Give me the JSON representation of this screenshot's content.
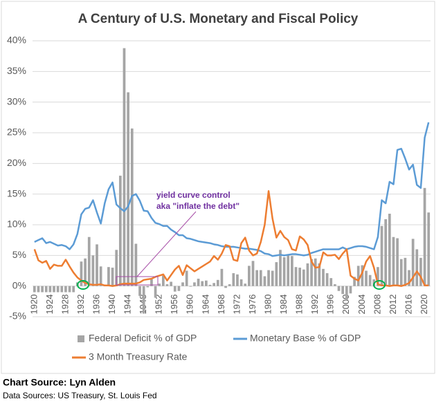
{
  "chart_data": {
    "type": "combo",
    "title": "A Century of U.S. Monetary and Fiscal Policy",
    "x": [
      1920,
      1921,
      1922,
      1923,
      1924,
      1925,
      1926,
      1927,
      1928,
      1929,
      1930,
      1931,
      1932,
      1933,
      1934,
      1935,
      1936,
      1937,
      1938,
      1939,
      1940,
      1941,
      1942,
      1943,
      1944,
      1945,
      1946,
      1947,
      1948,
      1949,
      1950,
      1951,
      1952,
      1953,
      1954,
      1955,
      1956,
      1957,
      1958,
      1959,
      1960,
      1961,
      1962,
      1963,
      1964,
      1965,
      1966,
      1967,
      1968,
      1969,
      1970,
      1971,
      1972,
      1973,
      1974,
      1975,
      1976,
      1977,
      1978,
      1979,
      1980,
      1981,
      1982,
      1983,
      1984,
      1985,
      1986,
      1987,
      1988,
      1989,
      1990,
      1991,
      1992,
      1993,
      1994,
      1995,
      1996,
      1997,
      1998,
      1999,
      2000,
      2001,
      2002,
      2003,
      2004,
      2005,
      2006,
      2007,
      2008,
      2009,
      2010,
      2011,
      2012,
      2013,
      2014,
      2015,
      2016,
      2017,
      2018,
      2019,
      2020,
      2021
    ],
    "xlim": [
      1919.5,
      2021.5
    ],
    "xticks": [
      1920,
      1924,
      1928,
      1932,
      1936,
      1940,
      1944,
      1948,
      1952,
      1956,
      1960,
      1964,
      1968,
      1972,
      1976,
      1980,
      1984,
      1988,
      1992,
      1996,
      2000,
      2004,
      2008,
      2012,
      2016,
      2020
    ],
    "ylim": [
      -5,
      40
    ],
    "yticks": [
      {
        "value": -5,
        "label": "-5%"
      },
      {
        "value": 0,
        "label": "0%"
      },
      {
        "value": 5,
        "label": "5%"
      },
      {
        "value": 10,
        "label": "10%"
      },
      {
        "value": 15,
        "label": "15%"
      },
      {
        "value": 20,
        "label": "20%"
      },
      {
        "value": 25,
        "label": "25%"
      },
      {
        "value": 30,
        "label": "30%"
      },
      {
        "value": 35,
        "label": "35%"
      },
      {
        "value": 40,
        "label": "40%"
      }
    ],
    "grid": true,
    "series": [
      {
        "name": "Federal Deficit % of GDP",
        "type": "bar",
        "color": "#a5a5a5",
        "values": [
          -1,
          -1,
          -1,
          -1,
          -1,
          -1,
          -1,
          -1,
          -1,
          -1,
          -1,
          0.6,
          4.0,
          4.5,
          8.0,
          5.0,
          6.8,
          3.2,
          0.1,
          3.1,
          3.0,
          5.9,
          18.0,
          38.8,
          31.6,
          25.7,
          6.9,
          -1.6,
          -4.5,
          -0.2,
          1.1,
          -1.9,
          0.4,
          1.7,
          0.3,
          0.7,
          -0.9,
          -0.8,
          0.6,
          2.5,
          -0.1,
          0.6,
          1.2,
          0.8,
          0.9,
          0.2,
          0.5,
          1.0,
          2.8,
          -0.3,
          0.3,
          2.1,
          1.9,
          1.1,
          0.4,
          3.3,
          4.1,
          2.6,
          2.6,
          1.6,
          2.6,
          2.5,
          3.9,
          5.9,
          4.7,
          5.0,
          4.9,
          3.1,
          3.0,
          2.7,
          3.7,
          4.4,
          4.5,
          3.7,
          2.8,
          2.1,
          1.3,
          0.3,
          -0.8,
          -1.3,
          -2.3,
          -1.2,
          1.5,
          3.3,
          3.4,
          2.5,
          1.8,
          1.1,
          3.1,
          9.8,
          10.9,
          11.8,
          8.0,
          7.8,
          4.4,
          4.6,
          2.6,
          7.7,
          6.0,
          4.6,
          16.0,
          12.0
        ]
      },
      {
        "name": "Monetary Base % of GDP",
        "type": "line",
        "color": "#5b9bd5",
        "values": [
          7.2,
          7.5,
          7.8,
          7.0,
          7.2,
          6.9,
          6.6,
          6.7,
          6.5,
          6.0,
          6.8,
          8.5,
          11.7,
          12.6,
          12.8,
          14.0,
          12.0,
          10.2,
          13.5,
          15.8,
          16.9,
          13.3,
          12.7,
          12.2,
          13.0,
          14.7,
          15.0,
          13.9,
          12.3,
          12.2,
          11.1,
          10.3,
          10.1,
          9.8,
          9.8,
          9.2,
          8.8,
          8.3,
          8.3,
          7.8,
          7.7,
          7.5,
          7.3,
          7.2,
          7.1,
          7.0,
          6.8,
          6.7,
          6.5,
          6.4,
          6.4,
          6.4,
          6.3,
          6.2,
          6.1,
          6.1,
          6.0,
          5.9,
          5.7,
          5.3,
          5.2,
          4.9,
          5.0,
          5.1,
          5.0,
          5.1,
          5.2,
          5.2,
          5.1,
          5.0,
          5.1,
          5.4,
          5.6,
          5.8,
          6.0,
          6.0,
          6.0,
          6.0,
          6.0,
          6.3,
          6.0,
          6.2,
          6.4,
          6.5,
          6.5,
          6.4,
          6.2,
          6.0,
          8.0,
          14.0,
          13.5,
          17.0,
          16.6,
          22.2,
          22.4,
          20.8,
          19.0,
          19.8,
          16.5,
          16.0,
          24.2,
          26.7
        ]
      },
      {
        "name": "3 Month Treasury Rate",
        "type": "line",
        "color": "#ed7d31",
        "values": [
          6.0,
          4.2,
          3.8,
          4.1,
          2.8,
          3.5,
          3.3,
          3.3,
          4.3,
          3.2,
          2.2,
          1.4,
          0.9,
          0.5,
          0.3,
          0.2,
          0.2,
          0.3,
          0.1,
          0.1,
          0.0,
          0.1,
          0.3,
          0.4,
          0.4,
          0.4,
          0.4,
          0.6,
          1.0,
          1.1,
          1.2,
          1.5,
          1.7,
          1.9,
          0.9,
          1.8,
          2.7,
          3.3,
          1.8,
          3.4,
          2.9,
          2.4,
          2.8,
          3.2,
          3.6,
          4.0,
          4.9,
          4.3,
          5.3,
          6.7,
          6.5,
          4.3,
          4.1,
          7.0,
          7.9,
          5.8,
          5.0,
          5.3,
          7.2,
          10.0,
          15.5,
          11.0,
          7.9,
          9.0,
          8.0,
          7.5,
          6.0,
          5.8,
          8.1,
          7.6,
          6.7,
          4.0,
          3.0,
          3.1,
          5.5,
          5.0,
          5.0,
          5.1,
          4.4,
          5.3,
          6.0,
          1.7,
          1.2,
          0.9,
          2.2,
          4.0,
          4.9,
          3.0,
          0.3,
          0.1,
          0.1,
          0.0,
          0.1,
          0.1,
          0.0,
          0.2,
          0.5,
          1.4,
          2.4,
          1.5,
          0.1,
          0.1
        ]
      }
    ],
    "annotation": [
      "yield curve control",
      "aka \"inflate the debt\""
    ],
    "source": "Chart Source: Lyn Alden",
    "data_sources": "Data Sources: US Treasury, St. Louis Fed"
  }
}
